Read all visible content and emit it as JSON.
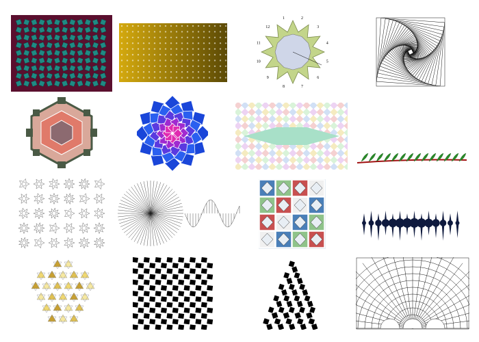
{
  "gallery": {
    "tiles": [
      {
        "name": "maroon-teal-islamic-pattern",
        "colors": {
          "bg": "#5a0f2e",
          "fg": "#1f8a84"
        }
      },
      {
        "name": "gold-gradient-tile-grid",
        "colors": {
          "from": "#d4a90e",
          "to": "#5c4a05"
        }
      },
      {
        "name": "numbered-twelve-point-star",
        "labels": [
          "1",
          "2",
          "3",
          "4",
          "5",
          "6",
          "7",
          "8",
          "9",
          "10",
          "11",
          "12"
        ],
        "colors": {
          "petal": "#c3d58a",
          "center": "#cfd6e8"
        }
      },
      {
        "name": "spiral-squares-line-art",
        "colors": {
          "stroke": "#111111"
        }
      },
      {
        "name": "hexagonal-star-mosaic",
        "colors": {
          "bar": "#4a5a45",
          "fill": "#e08080"
        }
      },
      {
        "name": "blue-magenta-rosette",
        "colors": {
          "outer": "#1a46d9",
          "inner": "#c61ab5"
        }
      },
      {
        "name": "pastel-diamond-lattice",
        "colors": {
          "center": "#a8e0c8"
        }
      },
      {
        "name": "green-vine-branch",
        "colors": {
          "leaf": "#2a8a2a",
          "stem": "#a01010"
        }
      },
      {
        "name": "rosette-catalog-grid",
        "colors": {
          "stroke": "#666666"
        }
      },
      {
        "name": "spiral-wave-line-drawing",
        "colors": {
          "stroke": "#222222"
        }
      },
      {
        "name": "interlaced-star-tile",
        "colors": {
          "blue": "#4a7fb8",
          "green": "#8fc38a"
        }
      },
      {
        "name": "navy-spiky-fractal",
        "colors": {
          "fill": "#0f1a3e"
        }
      },
      {
        "name": "gold-hexagram-pattern",
        "colors": {
          "gold": "#e0c050"
        }
      },
      {
        "name": "black-white-checker-tessellation",
        "colors": {
          "fill": "#000000"
        }
      },
      {
        "name": "triangle-checker-warp",
        "colors": {
          "fill": "#000000"
        }
      },
      {
        "name": "polar-grid-arches",
        "colors": {
          "stroke": "#111111"
        }
      }
    ]
  }
}
